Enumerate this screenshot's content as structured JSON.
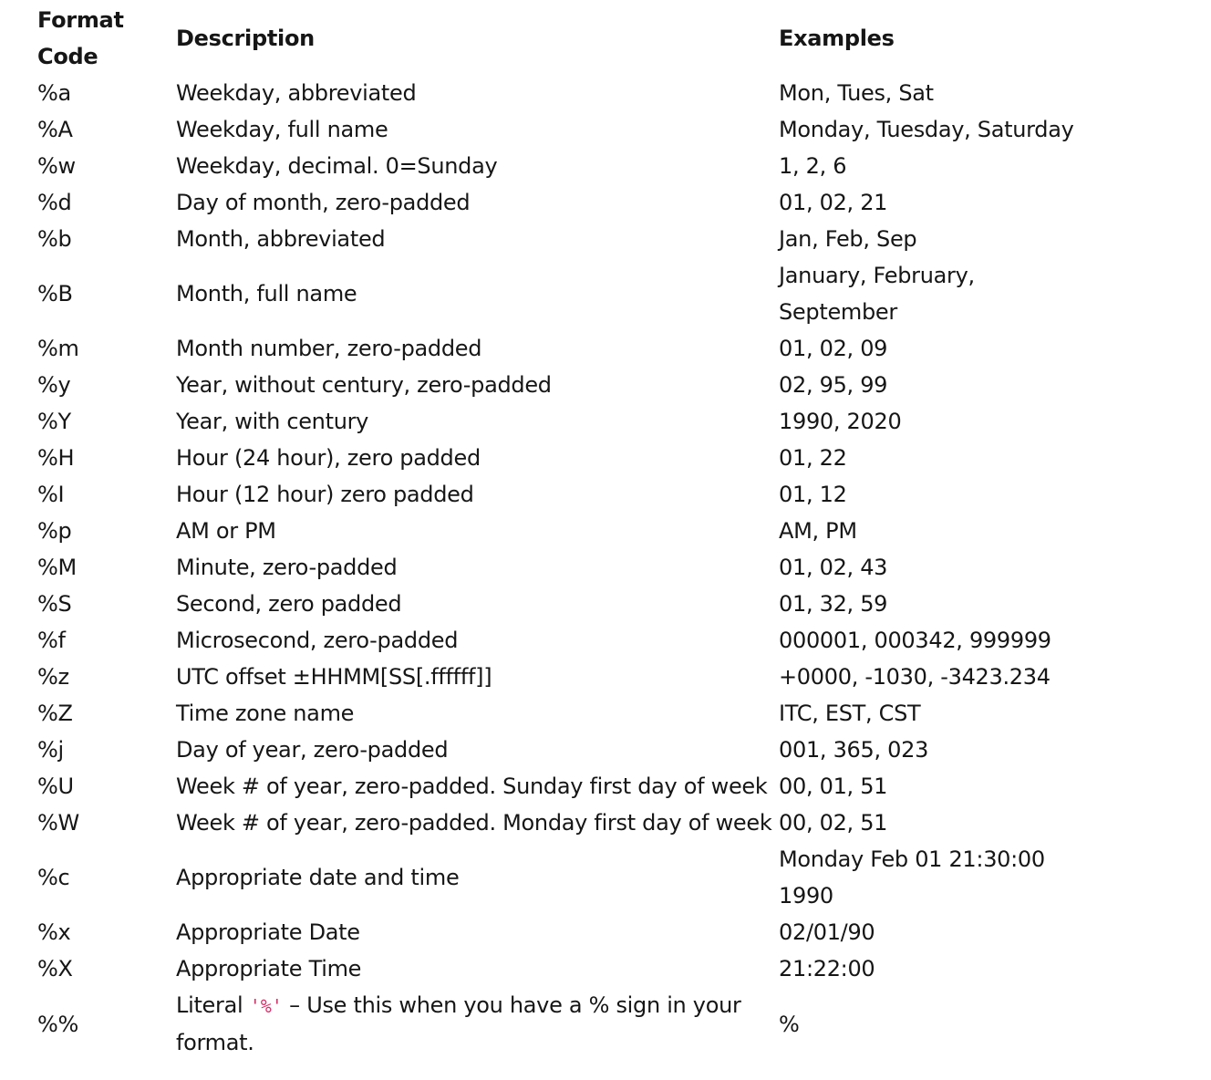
{
  "headers": {
    "code_line1": "Format",
    "code_line2": "Code",
    "description": "Description",
    "examples": "Examples"
  },
  "rows": [
    {
      "code": "%a",
      "description": "Weekday, abbreviated",
      "examples": "Mon, Tues, Sat"
    },
    {
      "code": "%A",
      "description": "Weekday, full name",
      "examples": "Monday, Tuesday, Saturday"
    },
    {
      "code": "%w",
      "description": "Weekday, decimal. 0=Sunday",
      "examples": "1, 2, 6"
    },
    {
      "code": "%d",
      "description": "Day of month, zero-padded",
      "examples": "01, 02, 21"
    },
    {
      "code": "%b",
      "description": "Month, abbreviated",
      "examples": "Jan, Feb, Sep"
    },
    {
      "code": "%B",
      "description": "Month, full name",
      "examples_line1": "January, February,",
      "examples_line2": "September"
    },
    {
      "code": "%m",
      "description": "Month number, zero-padded",
      "examples": "01, 02, 09"
    },
    {
      "code": "%y",
      "description": "Year, without century, zero-padded",
      "examples": "02, 95, 99"
    },
    {
      "code": "%Y",
      "description": "Year, with century",
      "examples": "1990, 2020"
    },
    {
      "code": "%H",
      "description": "Hour (24 hour), zero padded",
      "examples": "01, 22"
    },
    {
      "code": "%I",
      "description": "Hour (12 hour) zero padded",
      "examples": "01, 12"
    },
    {
      "code": "%p",
      "description": "AM or PM",
      "examples": "AM, PM"
    },
    {
      "code": "%M",
      "description": "Minute, zero-padded",
      "examples": "01, 02, 43"
    },
    {
      "code": "%S",
      "description": "Second, zero padded",
      "examples": "01, 32, 59"
    },
    {
      "code": "%f",
      "description": "Microsecond, zero-padded",
      "examples": "000001, 000342, 999999"
    },
    {
      "code": "%z",
      "description": "UTC offset ±HHMM[SS[.ffffff]]",
      "examples": "+0000, -1030, -3423.234"
    },
    {
      "code": "%Z",
      "description": "Time zone name",
      "examples": "ITC, EST, CST"
    },
    {
      "code": "%j",
      "description": "Day of year, zero-padded",
      "examples": "001, 365, 023"
    },
    {
      "code": "%U",
      "description": "Week # of year, zero-padded. Sunday first day of week",
      "examples": "00, 01, 51"
    },
    {
      "code": "%W",
      "description": "Week # of year, zero-padded. Monday first day of week",
      "examples": "00, 02, 51"
    },
    {
      "code": "%c",
      "description": "Appropriate date and time",
      "examples_line1": "Monday Feb 01 21:30:00",
      "examples_line2": "1990"
    },
    {
      "code": "%x",
      "description": "Appropriate Date",
      "examples": "02/01/90"
    },
    {
      "code": "%X",
      "description": "Appropriate Time",
      "examples": "21:22:00"
    },
    {
      "code": "%%",
      "description_prefix": "Literal",
      "description_code": "'%'",
      "description_suffix": "– Use this when you have a % sign in your",
      "description_line2": "format.",
      "examples": "%"
    }
  ],
  "colors": {
    "text": "#161616",
    "inline_code": "#d6336c",
    "background": "#ffffff"
  }
}
